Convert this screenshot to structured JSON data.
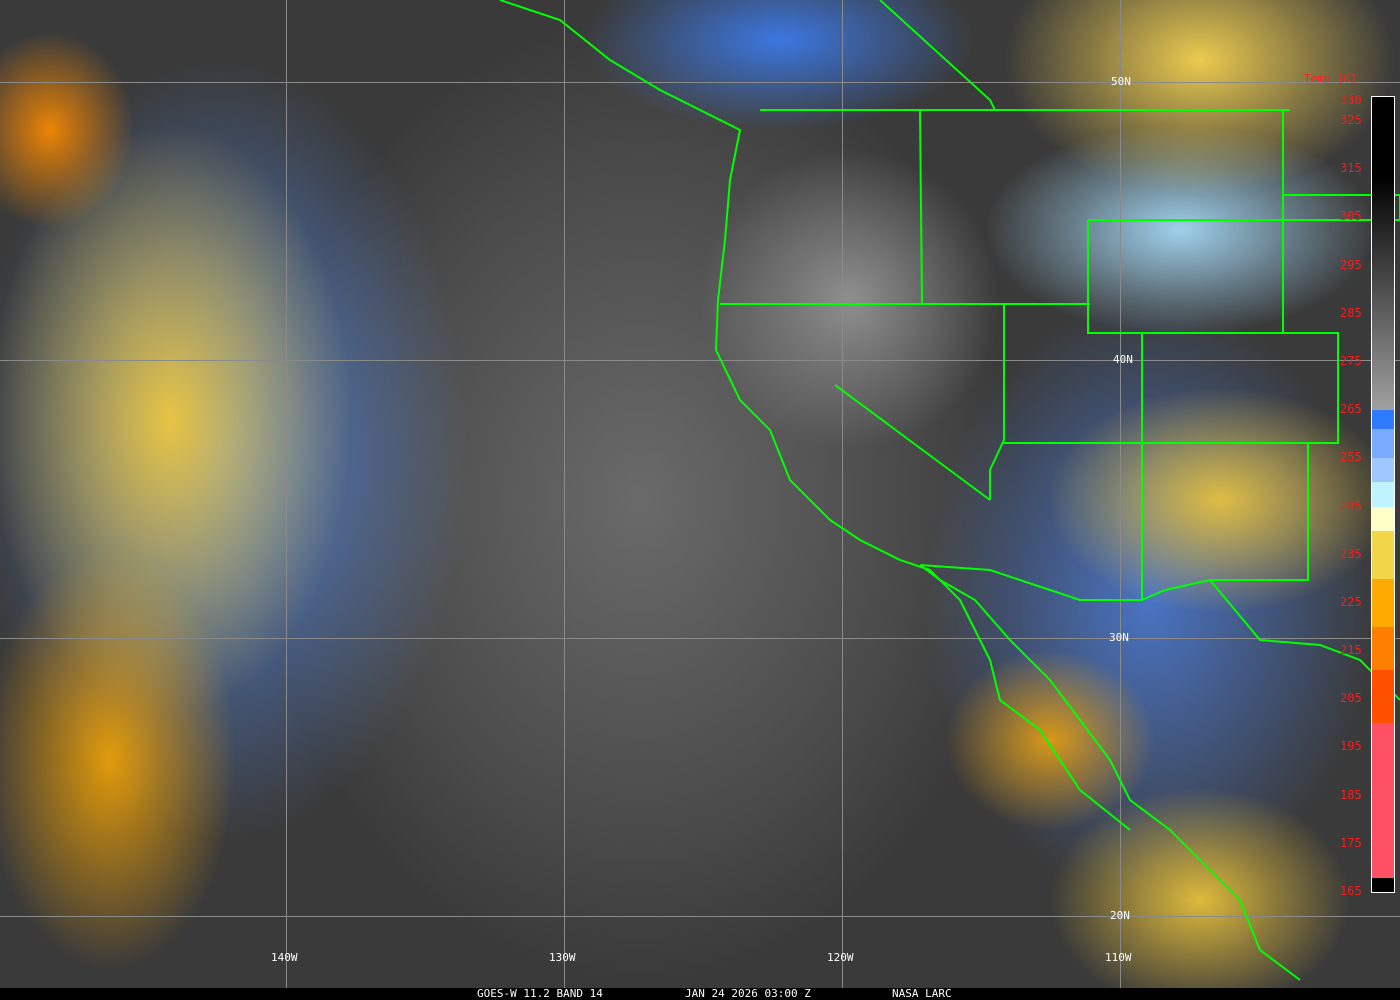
{
  "caption": {
    "satellite": "GOES-W 11.2 BAND 14",
    "datetime": "JAN 24 2026 03:00 Z",
    "source": "NASA LARC"
  },
  "grid": {
    "longitudes": [
      "140W",
      "130W",
      "120W",
      "110W"
    ],
    "latitudes": [
      "50N",
      "40N",
      "30N",
      "20N"
    ]
  },
  "colorbar": {
    "title": "Temp [K]",
    "range_k": [
      165,
      330
    ],
    "ticks": [
      "330",
      "325",
      "315",
      "305",
      "295",
      "285",
      "275",
      "265",
      "255",
      "245",
      "235",
      "225",
      "215",
      "205",
      "195",
      "185",
      "175",
      "165"
    ],
    "segments": [
      {
        "from_k": 265,
        "to_k": 330,
        "color_top": "#000000",
        "color_bottom": "#a0a0a0"
      },
      {
        "from_k": 261,
        "to_k": 265,
        "color": "#2f7bff"
      },
      {
        "from_k": 255,
        "to_k": 261,
        "color": "#78aaff"
      },
      {
        "from_k": 250,
        "to_k": 255,
        "color": "#a0c8ff"
      },
      {
        "from_k": 245,
        "to_k": 250,
        "color": "#bff3ff"
      },
      {
        "from_k": 240,
        "to_k": 245,
        "color": "#ffffc8"
      },
      {
        "from_k": 230,
        "to_k": 240,
        "color": "#f2d548"
      },
      {
        "from_k": 220,
        "to_k": 230,
        "color": "#ffaa00"
      },
      {
        "from_k": 211,
        "to_k": 220,
        "color": "#ff7f00"
      },
      {
        "from_k": 200,
        "to_k": 211,
        "color": "#ff5000"
      },
      {
        "from_k": 168,
        "to_k": 200,
        "color": "#ff5064"
      },
      {
        "from_k": 165,
        "to_k": 168,
        "color": "#000000"
      }
    ]
  },
  "colors": {
    "borders": "#00ff00",
    "grid": "#8a8a8a",
    "labels": "#ffffff",
    "colorbar_text": "#ff1a1a"
  }
}
